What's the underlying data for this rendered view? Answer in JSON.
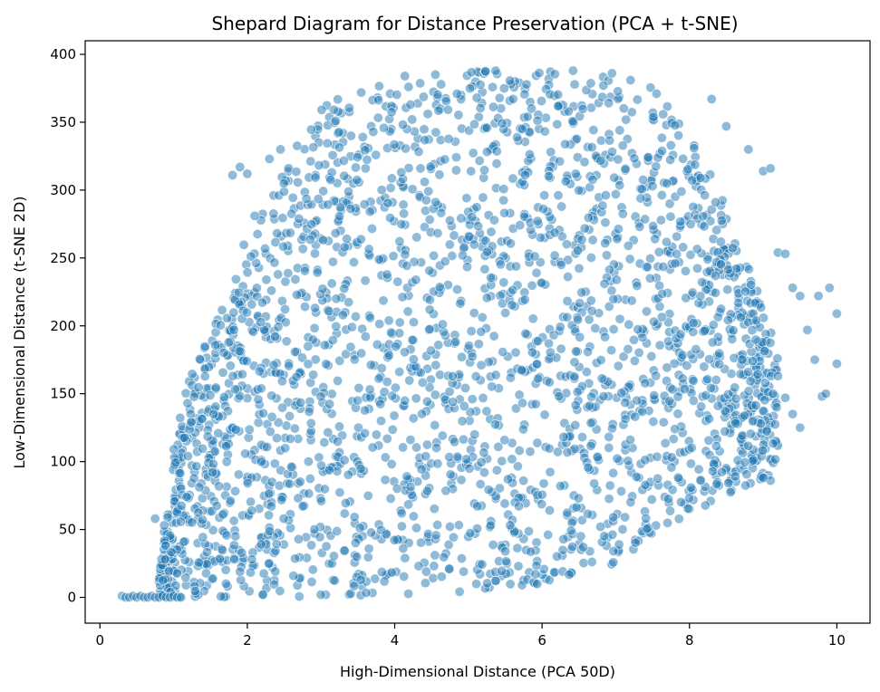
{
  "chart_data": {
    "type": "scatter",
    "title": "Shepard Diagram for Distance Preservation (PCA + t-SNE)",
    "xlabel": "High-Dimensional Distance (PCA 50D)",
    "ylabel": "Low-Dimensional Distance (t-SNE 2D)",
    "xlim": [
      -0.2,
      10.45
    ],
    "ylim": [
      -19,
      410
    ],
    "xticks": [
      0,
      2,
      4,
      6,
      8,
      10
    ],
    "yticks": [
      0,
      50,
      100,
      150,
      200,
      250,
      300,
      350,
      400
    ],
    "grid": false,
    "legend": "none",
    "marker_color": "#1f77b4",
    "marker_alpha": 0.5,
    "series": [
      {
        "description_of_cloud_envelope": null,
        "envelope": {
          "x": [
            0.8,
            1.0,
            1.2,
            1.5,
            1.8,
            2.0,
            2.3,
            2.6,
            2.8,
            3.0,
            3.3,
            3.6,
            4.0,
            4.5,
            5.0,
            5.5,
            6.0,
            6.5,
            7.0,
            7.4,
            7.8,
            8.1,
            8.4,
            8.7,
            8.9,
            9.1,
            9.2
          ],
          "y_upper": [
            25,
            110,
            160,
            200,
            230,
            270,
            290,
            330,
            345,
            360,
            375,
            382,
            384,
            386,
            388,
            389,
            389,
            388,
            386,
            380,
            360,
            330,
            300,
            260,
            230,
            200,
            180
          ],
          "y_lower": [
            0,
            0,
            0,
            0,
            0,
            0,
            0,
            0,
            0,
            0,
            0,
            0,
            1,
            2,
            4,
            6,
            10,
            17,
            25,
            35,
            50,
            62,
            72,
            80,
            85,
            90,
            100
          ]
        },
        "near_zero_row": {
          "x": [
            0.3,
            0.35,
            0.4,
            0.45,
            0.5,
            0.55,
            0.6,
            0.65,
            0.7,
            0.75,
            0.8,
            0.85,
            0.9,
            0.95,
            1.0,
            1.05,
            1.1
          ],
          "y": [
            1,
            0,
            0,
            1,
            0,
            1,
            0,
            0,
            1,
            0,
            0,
            1,
            0,
            0,
            1,
            0,
            0
          ]
        },
        "outliers": {
          "x": [
            0.75,
            1.8,
            1.9,
            2.0,
            2.1,
            2.3,
            2.45,
            8.3,
            8.5,
            8.8,
            9.0,
            9.1,
            9.2,
            9.3,
            9.4,
            9.5,
            9.6,
            9.7,
            9.75,
            9.8,
            9.85,
            9.9,
            10.0,
            10.0,
            9.5,
            9.4,
            9.3,
            9.2,
            9.1,
            9.0
          ],
          "y": [
            58,
            311,
            317,
            312,
            281,
            323,
            330,
            367,
            347,
            330,
            314,
            316,
            254,
            253,
            228,
            222,
            197,
            175,
            222,
            148,
            150,
            228,
            209,
            172,
            125,
            135,
            147,
            163,
            86,
            88
          ]
        }
      }
    ]
  }
}
